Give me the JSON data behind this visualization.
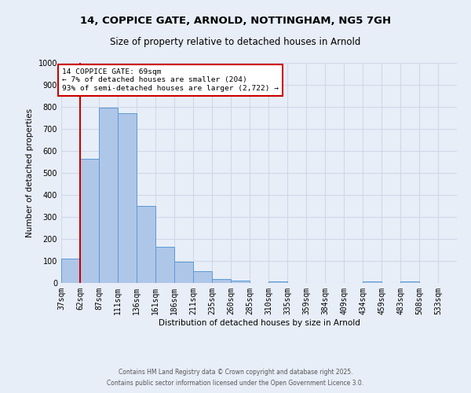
{
  "title1": "14, COPPICE GATE, ARNOLD, NOTTINGHAM, NG5 7GH",
  "title2": "Size of property relative to detached houses in Arnold",
  "xlabel": "Distribution of detached houses by size in Arnold",
  "ylabel": "Number of detached properties",
  "categories": [
    "37sqm",
    "62sqm",
    "87sqm",
    "111sqm",
    "136sqm",
    "161sqm",
    "186sqm",
    "211sqm",
    "235sqm",
    "260sqm",
    "285sqm",
    "310sqm",
    "335sqm",
    "359sqm",
    "384sqm",
    "409sqm",
    "434sqm",
    "459sqm",
    "483sqm",
    "508sqm",
    "533sqm"
  ],
  "bar_values": [
    110,
    565,
    795,
    770,
    350,
    165,
    95,
    52,
    17,
    12,
    0,
    8,
    0,
    0,
    0,
    0,
    8,
    0,
    8,
    0,
    0
  ],
  "bar_color": "#aec6e8",
  "bar_edge_color": "#5b9bd5",
  "red_line_x": 1,
  "annotation_text": "14 COPPICE GATE: 69sqm\n← 7% of detached houses are smaller (204)\n93% of semi-detached houses are larger (2,722) →",
  "annotation_box_color": "#ffffff",
  "annotation_box_edge_color": "#cc0000",
  "red_line_color": "#cc0000",
  "ylim": [
    0,
    1000
  ],
  "yticks": [
    0,
    100,
    200,
    300,
    400,
    500,
    600,
    700,
    800,
    900,
    1000
  ],
  "grid_color": "#d0d8e8",
  "bg_color": "#e8eef8",
  "footer1": "Contains HM Land Registry data © Crown copyright and database right 2025.",
  "footer2": "Contains public sector information licensed under the Open Government Licence 3.0."
}
